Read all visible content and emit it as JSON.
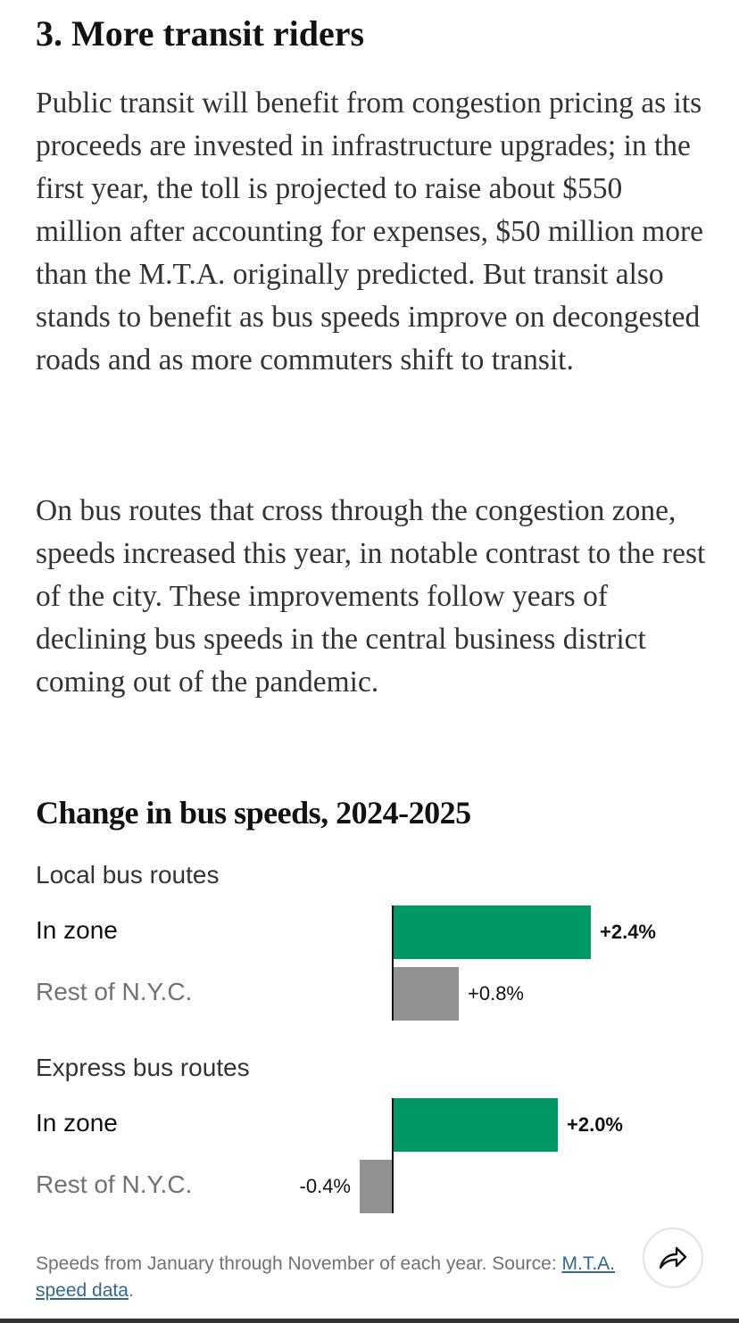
{
  "section_heading": "3. More transit riders",
  "paragraphs": [
    "Public transit will benefit from congestion pricing as its proceeds are invested in infrastructure upgrades; in the first year, the toll is projected to raise about $550 million after accounting for expenses, $50 million more than the M.T.A. originally predicted. But transit also stands to benefit as bus speeds improve on decongested roads and as more commuters shift to transit.",
    "On bus routes that cross through the congestion zone, speeds increased this year, in notable contrast to the rest of the city. These improvements follow years of declining bus speeds in the central business district coming out of the pandemic."
  ],
  "chart_data": {
    "type": "bar",
    "title": "Change in bus speeds, 2024-2025",
    "unit": "%",
    "groups": [
      {
        "name": "Local bus routes",
        "rows": [
          {
            "label": "In zone",
            "value": 2.4,
            "display": "+2.4%",
            "color": "#009966"
          },
          {
            "label": "Rest of N.Y.C.",
            "value": 0.8,
            "display": "+0.8%",
            "color": "#919191"
          }
        ]
      },
      {
        "name": "Express bus routes",
        "rows": [
          {
            "label": "In zone",
            "value": 2.0,
            "display": "+2.0%",
            "color": "#009966"
          },
          {
            "label": "Rest of N.Y.C.",
            "value": -0.4,
            "display": "-0.4%",
            "color": "#919191"
          }
        ]
      }
    ]
  },
  "note": {
    "text": "Speeds from January through November of each year. Source: ",
    "link": "M.T.A. speed data",
    "end": "."
  },
  "share_icon": "share-arrow-icon"
}
